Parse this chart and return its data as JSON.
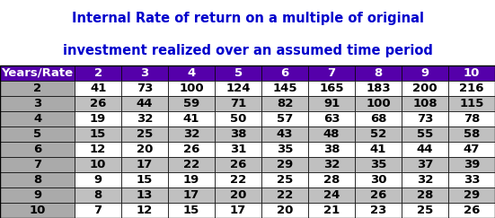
{
  "title_line1": "Internal Rate of return on a multiple of original",
  "title_line2": "investment realized over an assumed time period",
  "title_color": "#0000CC",
  "title_fontsize": 10.5,
  "header_bg": "#5500AA",
  "header_text_color": "#FFFFFF",
  "col_header": [
    "Years/Rate",
    "2",
    "3",
    "4",
    "5",
    "6",
    "7",
    "8",
    "9",
    "10"
  ],
  "row_headers": [
    "2",
    "3",
    "4",
    "5",
    "6",
    "7",
    "8",
    "9",
    "10"
  ],
  "row_header_bg": "#AAAAAA",
  "row_data_bg_odd": "#FFFFFF",
  "row_data_bg_even": "#C0C0C0",
  "data": [
    [
      41,
      73,
      100,
      124,
      145,
      165,
      183,
      200,
      216
    ],
    [
      26,
      44,
      59,
      71,
      82,
      91,
      100,
      108,
      115
    ],
    [
      19,
      32,
      41,
      50,
      57,
      63,
      68,
      73,
      78
    ],
    [
      15,
      25,
      32,
      38,
      43,
      48,
      52,
      55,
      58
    ],
    [
      12,
      20,
      26,
      31,
      35,
      38,
      41,
      44,
      47
    ],
    [
      10,
      17,
      22,
      26,
      29,
      32,
      35,
      37,
      39
    ],
    [
      9,
      15,
      19,
      22,
      25,
      28,
      30,
      32,
      33
    ],
    [
      8,
      13,
      17,
      20,
      22,
      24,
      26,
      28,
      29
    ],
    [
      7,
      12,
      15,
      17,
      20,
      21,
      23,
      25,
      26
    ]
  ],
  "data_text_color": "#000000",
  "row_header_text_color": "#000000",
  "border_color": "#000000",
  "figsize": [
    5.51,
    2.43
  ],
  "dpi": 100
}
